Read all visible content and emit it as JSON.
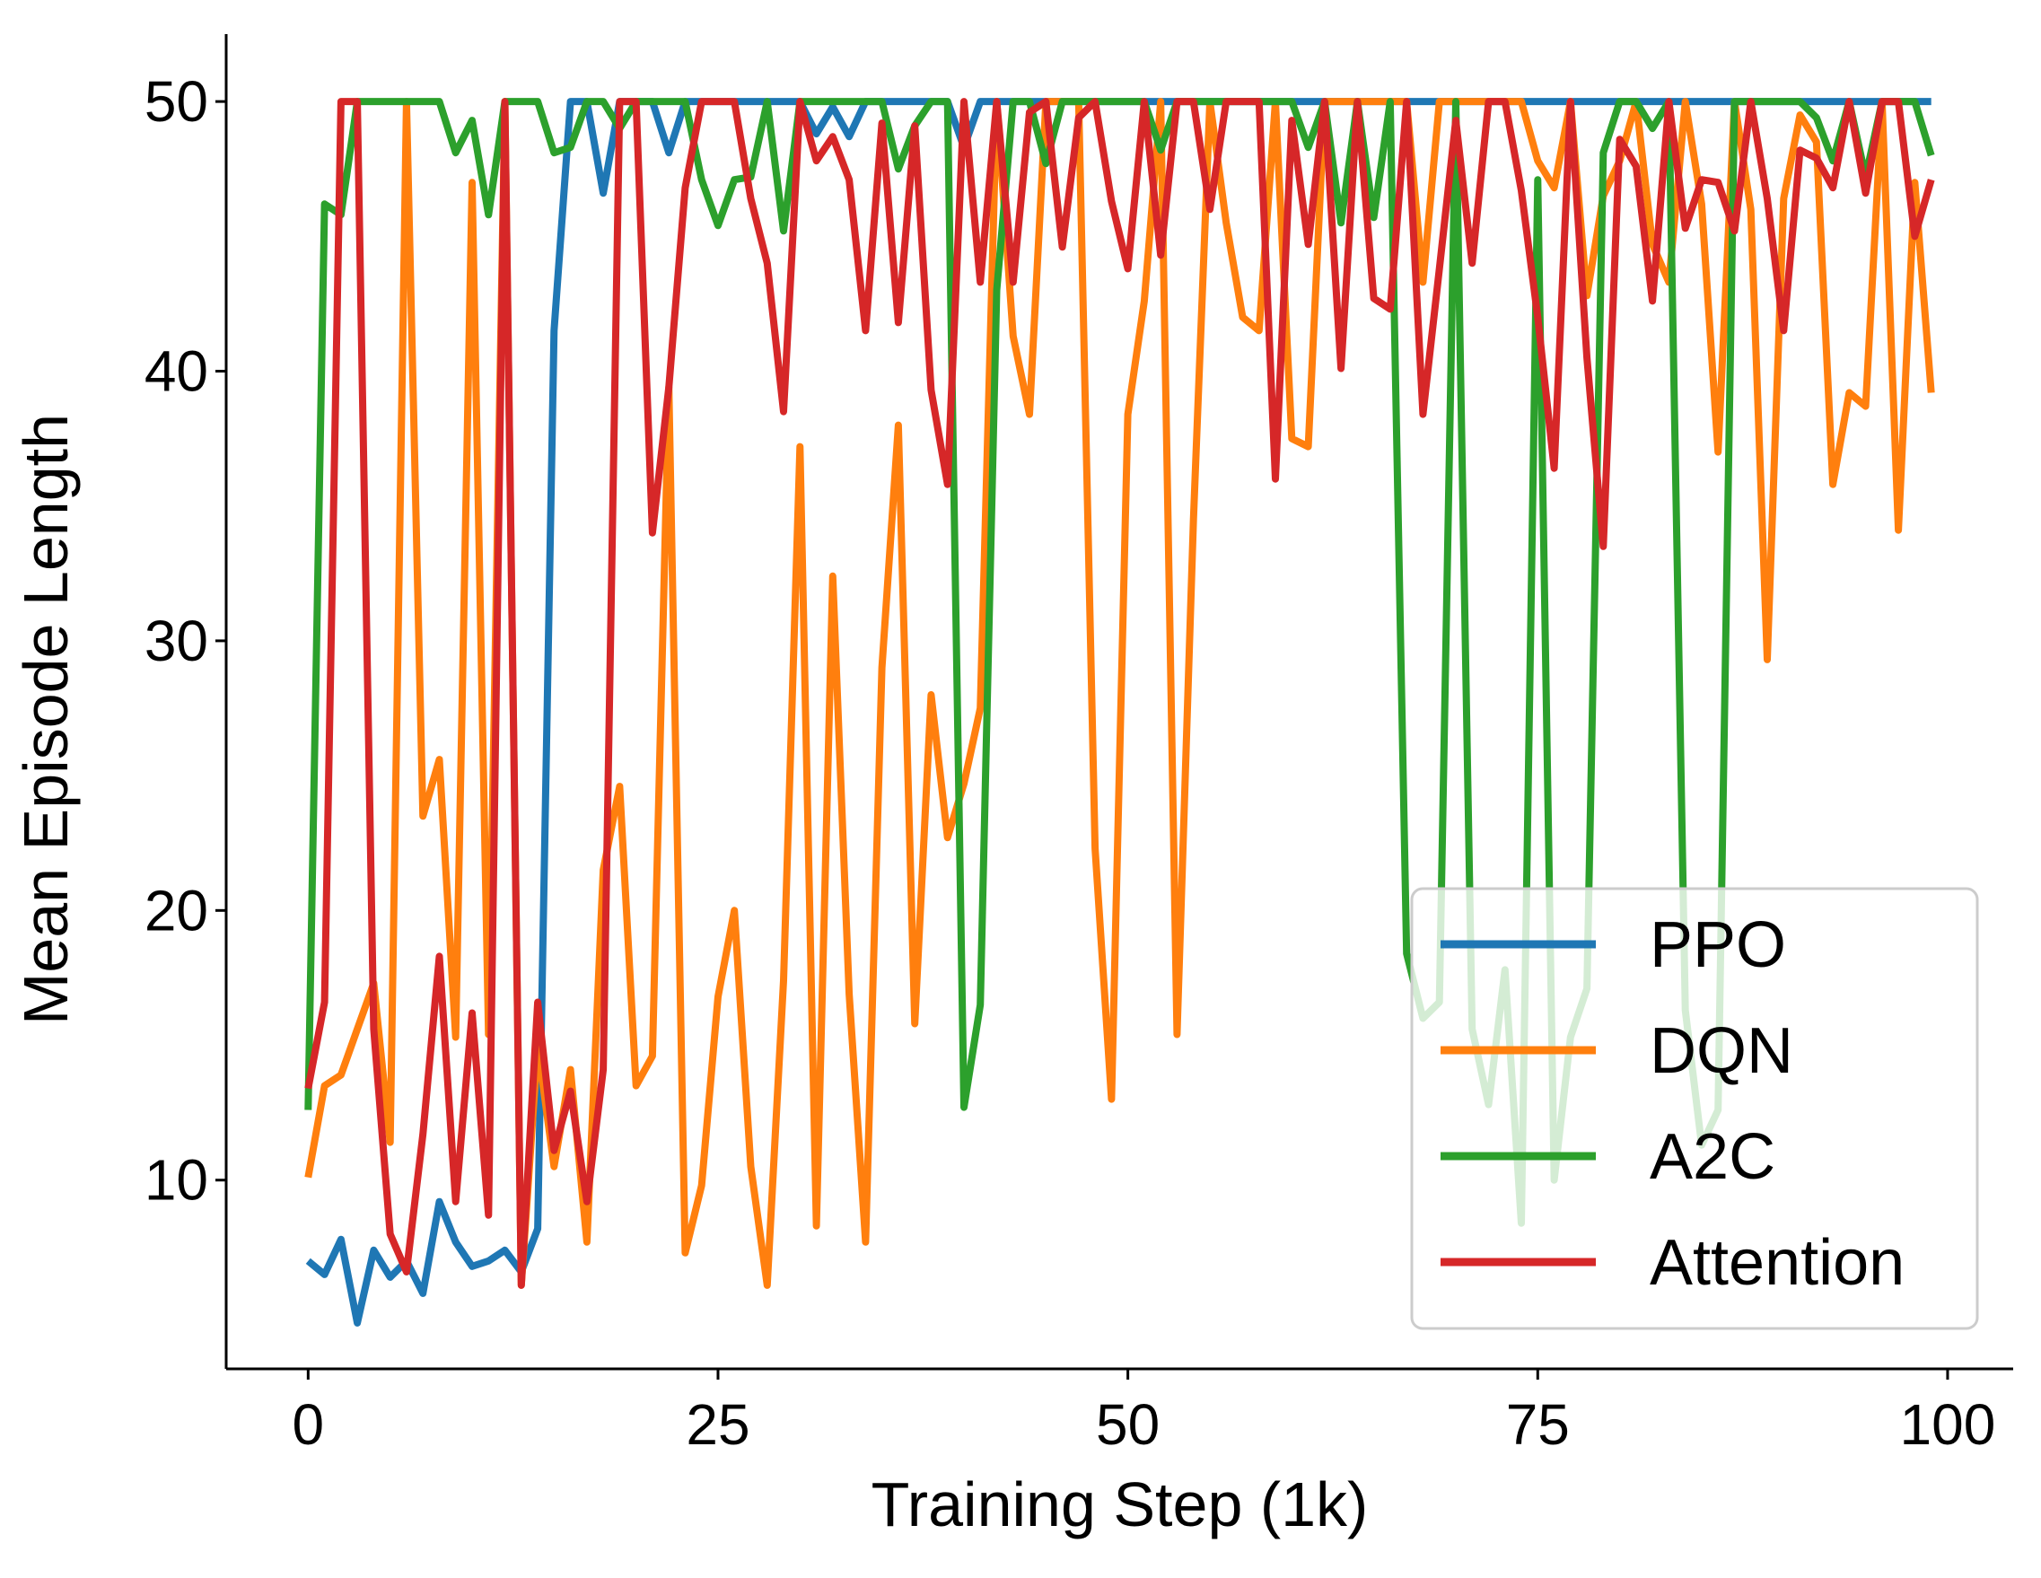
{
  "chart_data": {
    "type": "line",
    "title": "",
    "xlabel": "Training Step (1k)",
    "ylabel": "Mean Episode Length",
    "xlim": [
      -5,
      104
    ],
    "ylim": [
      3,
      52.5
    ],
    "xticks": [
      0,
      25,
      50,
      75,
      100
    ],
    "yticks": [
      10,
      20,
      30,
      40,
      50
    ],
    "grid": false,
    "legend_position": "lower-right",
    "x": [
      0,
      1,
      2,
      3,
      4,
      5,
      6,
      7,
      8,
      9,
      10,
      11,
      12,
      13,
      14,
      15,
      16,
      17,
      18,
      19,
      20,
      21,
      22,
      23,
      24,
      25,
      26,
      27,
      28,
      29,
      30,
      31,
      32,
      33,
      34,
      35,
      36,
      37,
      38,
      39,
      40,
      41,
      42,
      43,
      44,
      45,
      46,
      47,
      48,
      49,
      50,
      51,
      52,
      53,
      54,
      55,
      56,
      57,
      58,
      59,
      60,
      61,
      62,
      63,
      64,
      65,
      66,
      67,
      68,
      69,
      70,
      71,
      72,
      73,
      74,
      75,
      76,
      77,
      78,
      79,
      80,
      81,
      82,
      83,
      84,
      85,
      86,
      87,
      88,
      89,
      90,
      91,
      92,
      93,
      94,
      95,
      96,
      97,
      98,
      99
    ],
    "series": [
      {
        "name": "PPO",
        "color": "#1f77b4",
        "values": [
          7.0,
          6.5,
          7.8,
          4.7,
          7.4,
          6.4,
          7.0,
          5.8,
          9.2,
          7.7,
          6.8,
          7.0,
          7.4,
          6.6,
          8.2,
          41.5,
          50,
          50,
          46.6,
          50,
          50,
          50,
          48.1,
          50,
          50,
          50,
          50,
          50,
          50,
          50,
          50,
          48.8,
          49.8,
          48.7,
          50,
          50,
          50,
          50,
          50,
          50,
          48.3,
          50,
          50,
          50,
          50,
          50,
          50,
          50,
          50,
          50,
          50,
          50,
          50,
          50,
          50,
          50,
          50,
          50,
          50,
          50,
          50,
          50,
          50,
          50,
          50,
          50,
          50,
          50,
          50,
          50,
          50,
          50,
          50,
          50,
          50,
          50,
          50,
          50,
          50,
          50,
          50,
          50,
          50,
          50,
          50,
          50,
          50,
          50,
          50,
          50,
          50,
          50,
          50,
          50,
          50,
          50,
          50,
          50,
          50,
          50
        ]
      },
      {
        "name": "DQN",
        "color": "#ff7f0e",
        "values": [
          10.1,
          13.5,
          13.9,
          15.6,
          17.3,
          11.4,
          50,
          23.5,
          25.6,
          15.3,
          47.0,
          15.4,
          50,
          6.1,
          15.0,
          10.5,
          14.1,
          7.7,
          21.5,
          24.6,
          13.5,
          14.6,
          39.4,
          7.3,
          9.8,
          16.8,
          20.0,
          10.5,
          6.1,
          17.4,
          37.2,
          8.3,
          32.4,
          16.9,
          7.7,
          29.0,
          38.0,
          15.8,
          28.0,
          22.7,
          24.7,
          27.5,
          50,
          41.3,
          38.4,
          50,
          50,
          50,
          22.3,
          13.0,
          38.4,
          42.6,
          50,
          15.4,
          34.5,
          50,
          45.5,
          42.0,
          41.5,
          50,
          37.5,
          37.2,
          50,
          50,
          50,
          50,
          50,
          50,
          43.3,
          50,
          50,
          50,
          50,
          50,
          50,
          47.8,
          46.8,
          50,
          42.8,
          46.5,
          47.8,
          50,
          44.7,
          43.3,
          50,
          46.2,
          37.0,
          50,
          46.0,
          29.3,
          46.4,
          49.5,
          48.5,
          35.8,
          39.2,
          38.7,
          50,
          34.1,
          47.0,
          39.2
        ]
      },
      {
        "name": "A2C",
        "color": "#2ca02c",
        "values": [
          12.6,
          46.2,
          45.8,
          50,
          50,
          50,
          50,
          50,
          50,
          48.1,
          49.3,
          45.8,
          50,
          50,
          50,
          48.1,
          48.3,
          50,
          50,
          49.0,
          50,
          50,
          50,
          50,
          47.1,
          45.4,
          47.1,
          47.2,
          50,
          45.2,
          50,
          50,
          50,
          50,
          50,
          50,
          47.5,
          49.1,
          50,
          50,
          12.7,
          16.5,
          43.0,
          50,
          50,
          47.7,
          50,
          50,
          50,
          50,
          50,
          50,
          48.2,
          50,
          50,
          50,
          50,
          50,
          50,
          50,
          50,
          48.3,
          50,
          45.5,
          50,
          45.7,
          50,
          18.4,
          16.0,
          16.6,
          50,
          15.6,
          12.8,
          17.8,
          8.4,
          47.1,
          10.0,
          15.3,
          17.1,
          48.1,
          50,
          50,
          49.0,
          50,
          16.3,
          11.3,
          12.6,
          50,
          50,
          50,
          50,
          50,
          49.4,
          47.8,
          50,
          47.2,
          50,
          50,
          50,
          48.0
        ]
      },
      {
        "name": "Attention",
        "color": "#d62728",
        "values": [
          13.4,
          16.6,
          50,
          50,
          15.6,
          8.0,
          6.6,
          11.7,
          18.3,
          9.2,
          16.2,
          8.7,
          50,
          6.1,
          16.6,
          11.1,
          13.3,
          9.2,
          14.1,
          50,
          50,
          34.0,
          39.4,
          46.8,
          50,
          50,
          50,
          46.4,
          44.0,
          38.5,
          50,
          47.8,
          48.7,
          47.1,
          41.5,
          49.2,
          41.8,
          49.1,
          39.3,
          35.8,
          50,
          43.3,
          50,
          43.3,
          49.6,
          50,
          44.6,
          49.4,
          50,
          46.3,
          43.8,
          50,
          44.3,
          50,
          50,
          46.0,
          50,
          50,
          50,
          36.0,
          49.3,
          44.7,
          50,
          40.1,
          50,
          42.7,
          42.3,
          50,
          38.4,
          43.8,
          49.3,
          44.0,
          50,
          50,
          46.7,
          42.0,
          36.4,
          50,
          40.5,
          33.5,
          48.6,
          47.6,
          42.6,
          50,
          45.3,
          47.1,
          47.0,
          45.2,
          50,
          46.4,
          41.5,
          48.2,
          47.9,
          46.8,
          50,
          46.6,
          50,
          50,
          45.0,
          47.1
        ]
      }
    ]
  }
}
